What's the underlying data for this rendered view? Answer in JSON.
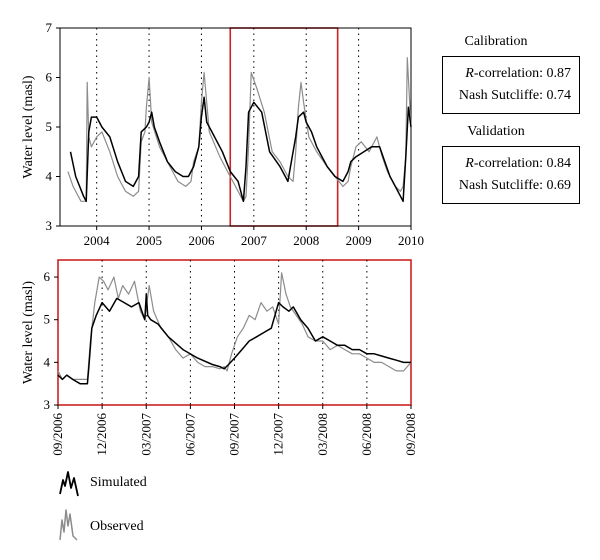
{
  "top_chart": {
    "ylabel": "Water level (masl)",
    "yticks": [
      "3",
      "4",
      "5",
      "6",
      "7"
    ],
    "xticks": [
      "2004",
      "2005",
      "2006",
      "2007",
      "2008",
      "2009",
      "2010"
    ]
  },
  "bottom_chart": {
    "ylabel": "Water level (masl)",
    "yticks": [
      "3",
      "4",
      "5",
      "6"
    ],
    "xticks": [
      "09/2006",
      "12/2006",
      "03/2007",
      "06/2007",
      "09/2007",
      "12/2007",
      "03/2008",
      "06/2008",
      "09/2008"
    ]
  },
  "calibration": {
    "title": "Calibration",
    "r_prefix": "R",
    "r_label": "-correlation: 0.87",
    "ns_label": "Nash Sutcliffe: 0.74"
  },
  "validation": {
    "title": "Validation",
    "r_prefix": "R",
    "r_label": "-correlation: 0.84",
    "ns_label": "Nash Sutcliffe: 0.69"
  },
  "legend": {
    "simulated": "Simulated",
    "observed": "Observed"
  },
  "colors": {
    "simulated": "#000000",
    "observed": "#8c8c8c",
    "highlight": "#cc2222",
    "axis": "#000000"
  },
  "chart_data": [
    {
      "type": "line",
      "ylim": [
        3,
        7
      ],
      "xlim": [
        2003.3,
        2010.0
      ],
      "ylabel": "Water level (masl)",
      "series": [
        {
          "name": "Simulated",
          "x": [
            2003.5,
            2003.6,
            2003.75,
            2003.8,
            2003.85,
            2003.9,
            2004.0,
            2004.1,
            2004.25,
            2004.4,
            2004.55,
            2004.7,
            2004.8,
            2004.85,
            2004.95,
            2005.0,
            2005.05,
            2005.1,
            2005.2,
            2005.35,
            2005.5,
            2005.65,
            2005.75,
            2005.85,
            2005.95,
            2006.0,
            2006.05,
            2006.1,
            2006.2,
            2006.4,
            2006.55,
            2006.7,
            2006.8,
            2006.85,
            2006.9,
            2007.0,
            2007.15,
            2007.3,
            2007.5,
            2007.65,
            2007.8,
            2007.85,
            2007.95,
            2008.0,
            2008.1,
            2008.2,
            2008.4,
            2008.55,
            2008.7,
            2008.8,
            2008.85,
            2008.95,
            2009.1,
            2009.25,
            2009.4,
            2009.5,
            2009.6,
            2009.7,
            2009.8,
            2009.85,
            2009.9,
            2009.95,
            2010.0
          ],
          "y": [
            4.5,
            4.0,
            3.6,
            3.5,
            4.9,
            5.2,
            5.2,
            5.0,
            4.8,
            4.3,
            3.9,
            3.8,
            4.0,
            4.9,
            5.0,
            5.1,
            5.3,
            5.0,
            4.7,
            4.3,
            4.1,
            4.0,
            4.0,
            4.2,
            4.6,
            5.2,
            5.6,
            5.1,
            4.9,
            4.5,
            4.1,
            3.9,
            3.5,
            4.2,
            5.3,
            5.5,
            5.3,
            4.5,
            4.2,
            3.9,
            4.8,
            5.2,
            5.3,
            5.1,
            4.9,
            4.6,
            4.2,
            4.0,
            3.9,
            4.1,
            4.3,
            4.4,
            4.5,
            4.6,
            4.6,
            4.3,
            4.0,
            3.8,
            3.6,
            3.5,
            4.4,
            5.4,
            5.0
          ]
        },
        {
          "name": "Observed",
          "x": [
            2003.45,
            2003.55,
            2003.7,
            2003.8,
            2003.82,
            2003.85,
            2003.9,
            2004.0,
            2004.1,
            2004.25,
            2004.4,
            2004.55,
            2004.7,
            2004.8,
            2004.85,
            2004.92,
            2004.95,
            2005.0,
            2005.05,
            2005.2,
            2005.4,
            2005.55,
            2005.7,
            2005.8,
            2005.85,
            2005.95,
            2006.0,
            2006.05,
            2006.15,
            2006.35,
            2006.5,
            2006.65,
            2006.75,
            2006.8,
            2006.85,
            2006.9,
            2006.95,
            2007.05,
            2007.2,
            2007.35,
            2007.5,
            2007.65,
            2007.75,
            2007.8,
            2007.85,
            2007.9,
            2007.95,
            2008.05,
            2008.2,
            2008.4,
            2008.55,
            2008.7,
            2008.8,
            2008.85,
            2008.95,
            2009.05,
            2009.2,
            2009.35,
            2009.45,
            2009.55,
            2009.7,
            2009.8,
            2009.85,
            2009.9,
            2009.93,
            2009.97,
            2010.0
          ],
          "y": [
            4.1,
            3.8,
            3.5,
            3.5,
            5.9,
            4.8,
            4.6,
            4.8,
            4.9,
            4.5,
            4.0,
            3.7,
            3.6,
            3.7,
            4.7,
            4.9,
            5.4,
            6.0,
            5.1,
            4.6,
            4.2,
            3.9,
            3.8,
            3.9,
            4.3,
            4.6,
            5.5,
            6.1,
            4.9,
            4.4,
            4.1,
            3.8,
            3.6,
            3.5,
            3.6,
            4.6,
            6.1,
            5.8,
            5.3,
            4.5,
            4.3,
            4.0,
            3.9,
            4.5,
            5.4,
            5.9,
            5.5,
            4.8,
            4.5,
            4.2,
            4.0,
            3.8,
            3.9,
            4.2,
            4.6,
            4.7,
            4.5,
            4.8,
            4.4,
            4.1,
            3.8,
            3.7,
            3.8,
            4.4,
            6.4,
            5.6,
            5.0
          ]
        }
      ],
      "highlight_range": [
        2006.55,
        2008.6
      ]
    },
    {
      "type": "line",
      "ylim": [
        3,
        6.4
      ],
      "xlim": [
        0,
        24
      ],
      "x_tick_positions": [
        0,
        3,
        6,
        9,
        12,
        15,
        18,
        21,
        24
      ],
      "xticks": [
        "09/2006",
        "12/2006",
        "03/2007",
        "06/2007",
        "09/2007",
        "12/2007",
        "03/2008",
        "06/2008",
        "09/2008"
      ],
      "ylabel": "Water level (masl)",
      "series": [
        {
          "name": "Simulated",
          "x": [
            0,
            0.3,
            0.6,
            1.0,
            1.5,
            2.0,
            2.1,
            2.3,
            2.6,
            3.0,
            3.5,
            4.0,
            4.5,
            5.0,
            5.5,
            5.9,
            6.0,
            6.1,
            6.3,
            6.8,
            7.5,
            8.5,
            9.5,
            10.5,
            11.0,
            11.3,
            11.6,
            12.0,
            12.5,
            13.0,
            13.5,
            14.0,
            14.5,
            15.0,
            15.3,
            15.7,
            16.0,
            16.5,
            17.0,
            17.5,
            18.0,
            18.5,
            19.0,
            19.5,
            20.0,
            20.5,
            21.0,
            21.5,
            22.0,
            22.5,
            23.0,
            23.5,
            24.0
          ],
          "y": [
            3.7,
            3.6,
            3.7,
            3.6,
            3.5,
            3.5,
            3.9,
            4.8,
            5.1,
            5.4,
            5.2,
            5.5,
            5.4,
            5.3,
            5.4,
            5.0,
            5.6,
            5.1,
            5.0,
            4.9,
            4.6,
            4.3,
            4.1,
            3.95,
            3.9,
            3.85,
            3.95,
            4.1,
            4.3,
            4.5,
            4.6,
            4.7,
            4.8,
            5.4,
            5.3,
            5.2,
            5.3,
            5.0,
            4.8,
            4.5,
            4.6,
            4.5,
            4.4,
            4.4,
            4.3,
            4.3,
            4.2,
            4.2,
            4.15,
            4.1,
            4.05,
            4.0,
            4.0
          ]
        },
        {
          "name": "Observed",
          "x": [
            0,
            0.3,
            0.6,
            1.0,
            1.5,
            2.0,
            2.2,
            2.5,
            2.8,
            3.1,
            3.4,
            3.8,
            4.1,
            4.4,
            4.8,
            5.2,
            5.6,
            5.9,
            6.0,
            6.2,
            6.5,
            7.0,
            7.5,
            8.0,
            8.5,
            9.0,
            9.5,
            10.0,
            10.5,
            11.0,
            11.3,
            11.5,
            11.8,
            12.2,
            12.6,
            13.0,
            13.4,
            13.8,
            14.2,
            14.6,
            15.0,
            15.2,
            15.5,
            15.8,
            16.2,
            16.6,
            17.0,
            17.5,
            18.0,
            18.5,
            19.0,
            19.5,
            20.0,
            20.5,
            21.0,
            21.5,
            22.0,
            22.5,
            23.0,
            23.5,
            24.0
          ],
          "y": [
            3.8,
            3.6,
            3.7,
            3.6,
            3.6,
            3.6,
            4.5,
            5.4,
            6.0,
            5.9,
            5.7,
            6.0,
            5.5,
            5.8,
            5.6,
            5.9,
            5.2,
            5.0,
            5.3,
            5.8,
            5.2,
            4.8,
            4.6,
            4.3,
            4.1,
            4.2,
            4.0,
            3.9,
            3.9,
            3.85,
            3.9,
            3.8,
            4.2,
            4.6,
            4.8,
            5.1,
            5.0,
            5.4,
            5.2,
            5.3,
            4.9,
            6.1,
            5.6,
            5.3,
            5.1,
            4.9,
            4.6,
            4.5,
            4.5,
            4.3,
            4.4,
            4.3,
            4.2,
            4.2,
            4.1,
            4.0,
            4.0,
            3.9,
            3.8,
            3.8,
            4.0
          ]
        }
      ]
    }
  ]
}
